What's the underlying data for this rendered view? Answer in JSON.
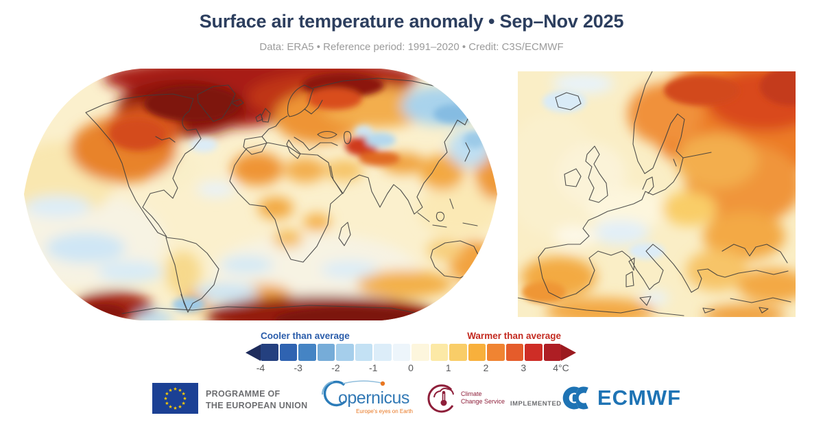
{
  "header": {
    "title": "Surface air temperature anomaly • Sep–Nov 2025",
    "subtitle": "Data: ERA5 • Reference period: 1991–2020 • Credit: C3S/ECMWF"
  },
  "legend": {
    "cooler_label": "Cooler than average",
    "warmer_label": "Warmer than average",
    "ticks": [
      "-4",
      "-3",
      "-2",
      "-1",
      "0",
      "1",
      "2",
      "3",
      "4°C"
    ],
    "segments": [
      "#24407f",
      "#2f63b1",
      "#4584c4",
      "#76acd8",
      "#a5ceeb",
      "#c3e1f4",
      "#dcedf9",
      "#edf5fb",
      "#fdf6dd",
      "#fce9a6",
      "#f9cd68",
      "#f8b03c",
      "#f08432",
      "#e55c2b",
      "#ce2d26",
      "#ae1e24"
    ],
    "arrow_left_color": "#1e2c5c",
    "arrow_right_color": "#9b1a1f"
  },
  "footer": {
    "eu_programme_line1": "PROGRAMME OF",
    "eu_programme_line2": "THE EUROPEAN UNION",
    "copernicus_name": "opernicus",
    "copernicus_tagline": "Europe's eyes on Earth",
    "c3s_line1": "Climate",
    "c3s_line2": "Change Service",
    "implemented_by": "IMPLEMENTED BY",
    "ecmwf_name": "ECMWF"
  },
  "colors": {
    "title_navy": "#2c3e5e",
    "subtitle_gray": "#9b9b9b",
    "cooler_blue": "#2a5caa",
    "warmer_red": "#c32a20",
    "tick_gray": "#58595b",
    "eu_blue": "#1b4094",
    "eu_star_yellow": "#ffcc00",
    "logo_text_gray": "#6d6e71",
    "copernicus_blue": "#3279b5",
    "copernicus_orange": "#e87722",
    "c3s_maroon": "#8e1f3a",
    "ecmwf_blue": "#1e73b4"
  },
  "chart_data": {
    "type": "heatmap",
    "title": "Surface air temperature anomaly • Sep–Nov 2025",
    "subtitle": "Data: ERA5 • Reference period: 1991–2020 • Credit: C3S/ECMWF",
    "unit": "°C",
    "colorbar": {
      "min": -4,
      "max": 4,
      "step": 0.5,
      "tick_labels": [
        "-4",
        "-3",
        "-2",
        "-1",
        "0",
        "1",
        "2",
        "3",
        "4°C"
      ],
      "cooler_label": "Cooler than average",
      "warmer_label": "Warmer than average",
      "segment_colors": [
        "#24407f",
        "#2f63b1",
        "#4584c4",
        "#76acd8",
        "#a5ceeb",
        "#c3e1f4",
        "#dcedf9",
        "#edf5fb",
        "#fdf6dd",
        "#fce9a6",
        "#f9cd68",
        "#f8b03c",
        "#f08432",
        "#e55c2b",
        "#ce2d26",
        "#ae1e24"
      ]
    },
    "panels": [
      {
        "name": "Global map",
        "projection": "Robinson-style world map",
        "notable_features": [
          "Strong warm anomalies (+3 to +4°C) over Arctic Canada, the Canadian Archipelago, Greenland and the Arctic Ocean",
          "Warm anomalies over western and central North America",
          "Warm anomalies over northern/eastern Europe extending into western Siberia and the Barents region",
          "Localized strong warm spot over Central Asia",
          "Cool anomalies over northeastern Siberia and the northwest Pacific near Japan",
          "Scattered cool patches in the southern Pacific, Atlantic and Indian Oceans",
          "Strong warm anomalies (+3 to +4°C) over much of Antarctica and the Ross Sea sector; slight cooling near the Antarctic Peninsula",
          "Mild warm anomalies (0 to +1°C) over most other oceans, North Africa and Australia/New Zealand region"
        ]
      },
      {
        "name": "Europe map",
        "projection": "Regional rectangular map of Europe",
        "notable_features": [
          "Strongest warm anomalies (+2 to +4°C) over Fennoscandia, northeastern Europe and northwest Russia",
          "Warm anomalies over southeastern Europe, the Black Sea region and Turkey",
          "Warm anomalies over Iberia and northwest Africa",
          "Near-average to slightly cool conditions over parts of central Europe and the Alpine region",
          "Slightly cool anomalies around Iceland and the sea north of it",
          "Near-average conditions over the UK, Ireland and western Europe"
        ]
      }
    ]
  }
}
